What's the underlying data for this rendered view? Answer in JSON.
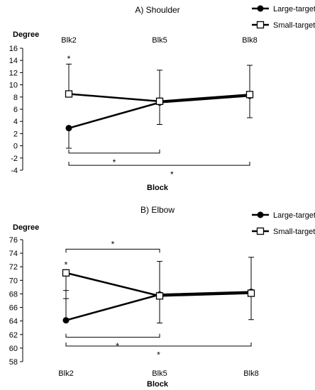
{
  "chart_data": [
    {
      "type": "line",
      "title": "A) Shoulder",
      "ylabel": "Degree",
      "xlabel": "Block",
      "categories": [
        "Blk2",
        "Blk5",
        "Blk8"
      ],
      "ylim": [
        -4,
        16
      ],
      "yticks": [
        -4,
        -2,
        0,
        2,
        4,
        6,
        8,
        10,
        12,
        14,
        16
      ],
      "category_labels_position": "top",
      "legend_position": "top-right",
      "grid": false,
      "series": [
        {
          "name": "Large-target",
          "marker": "filled-circle",
          "values": [
            2.9,
            7.1,
            8.2
          ],
          "err_plus": [
            null,
            5.3,
            5.0
          ],
          "err_minus": [
            3.3,
            3.6,
            3.6
          ]
        },
        {
          "name": "Small-target",
          "marker": "open-square",
          "values": [
            8.5,
            7.3,
            8.4
          ],
          "err_plus": [
            4.9,
            null,
            null
          ],
          "err_minus": [
            null,
            null,
            null
          ]
        }
      ],
      "annotations": [
        {
          "type": "star",
          "category": 0,
          "y": 14.4,
          "text": "*"
        },
        {
          "type": "bracket",
          "from": 0,
          "to": 1,
          "y": -1.2,
          "label": "*",
          "label_y": -2.6,
          "label_at": 0.5
        },
        {
          "type": "bracket",
          "from": 0,
          "to": 2,
          "y": -3.2,
          "label": "*",
          "label_y": -4.6,
          "label_at": 0.57
        }
      ]
    },
    {
      "type": "line",
      "title": "B) Elbow",
      "ylabel": "Degree",
      "xlabel": "Block",
      "categories": [
        "Blk2",
        "Blk5",
        "Blk8"
      ],
      "ylim": [
        58,
        76
      ],
      "yticks": [
        58,
        60,
        62,
        64,
        66,
        68,
        70,
        72,
        74,
        76
      ],
      "category_labels_position": "bottom",
      "legend_position": "top-right",
      "grid": false,
      "series": [
        {
          "name": "Large-target",
          "marker": "filled-circle",
          "values": [
            64.1,
            67.9,
            68.3
          ],
          "err_plus": [
            4.4,
            null,
            5.1
          ],
          "err_minus": [
            null,
            4.2,
            4.1
          ]
        },
        {
          "name": "Small-target",
          "marker": "open-square",
          "values": [
            71.1,
            67.7,
            68.1
          ],
          "err_plus": [
            null,
            5.1,
            null
          ],
          "err_minus": [
            3.8,
            null,
            null
          ]
        }
      ],
      "annotations": [
        {
          "type": "star",
          "category": 0,
          "y": 72.4,
          "text": "*"
        },
        {
          "type": "bracket",
          "from": 0,
          "to": 1,
          "y": 74.6,
          "direction": "down",
          "label": "*",
          "label_y": 75.4,
          "label_at": 0.5
        },
        {
          "type": "bracket",
          "from": 0,
          "to": 1,
          "y": 61.6,
          "label": "*",
          "label_y": 60.4,
          "label_at": 0.55
        },
        {
          "type": "bracket",
          "from": 0,
          "to": 2,
          "y": 60.3,
          "label": "*",
          "label_y": 59.1,
          "label_at": 0.5
        }
      ]
    }
  ]
}
